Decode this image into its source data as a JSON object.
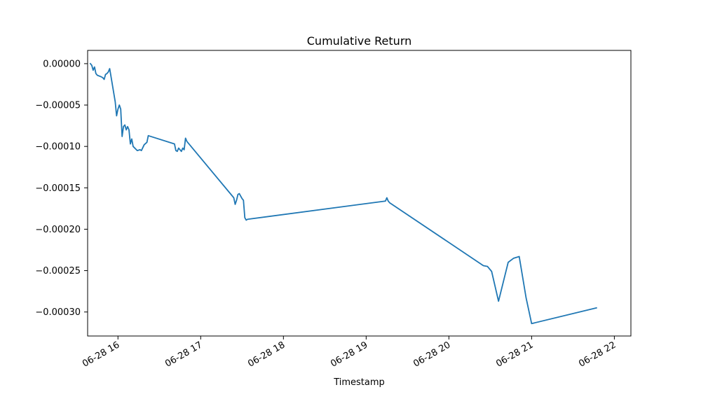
{
  "chart_data": {
    "type": "line",
    "title": "Cumulative Return",
    "xlabel": "Timestamp",
    "ylabel": "",
    "x_axis_type": "datetime",
    "xlim": [
      "2024-06-28 15:38",
      "2024-06-28 22:12"
    ],
    "ylim": [
      -0.000329,
      1.6e-05
    ],
    "x_ticks": [
      {
        "value": "2024-06-28 16:00",
        "label": "06-28 16"
      },
      {
        "value": "2024-06-28 17:00",
        "label": "06-28 17"
      },
      {
        "value": "2024-06-28 18:00",
        "label": "06-28 18"
      },
      {
        "value": "2024-06-28 19:00",
        "label": "06-28 19"
      },
      {
        "value": "2024-06-28 20:00",
        "label": "06-28 20"
      },
      {
        "value": "2024-06-28 21:00",
        "label": "06-28 21"
      },
      {
        "value": "2024-06-28 22:00",
        "label": "06-28 22"
      }
    ],
    "y_ticks": [
      {
        "value": 0.0,
        "label": "0.00000"
      },
      {
        "value": -5e-05,
        "label": "−0.00005"
      },
      {
        "value": -0.0001,
        "label": "−0.00010"
      },
      {
        "value": -0.00015,
        "label": "−0.00015"
      },
      {
        "value": -0.0002,
        "label": "−0.00020"
      },
      {
        "value": -0.00025,
        "label": "−0.00025"
      },
      {
        "value": -0.0003,
        "label": "−0.00030"
      }
    ],
    "grid": false,
    "legend": "none",
    "colors": {
      "line": "#1f77b4"
    },
    "series": [
      {
        "x": [
          "2024-06-28 15:40",
          "2024-06-28 15:41",
          "2024-06-28 15:42",
          "2024-06-28 15:43",
          "2024-06-28 15:44",
          "2024-06-28 15:45",
          "2024-06-28 15:48",
          "2024-06-28 15:49",
          "2024-06-28 15:50",
          "2024-06-28 15:51",
          "2024-06-28 15:52",
          "2024-06-28 15:53",
          "2024-06-28 15:54",
          "2024-06-28 15:58",
          "2024-06-28 15:59",
          "2024-06-28 16:00",
          "2024-06-28 16:01",
          "2024-06-28 16:02",
          "2024-06-28 16:03",
          "2024-06-28 16:04",
          "2024-06-28 16:05",
          "2024-06-28 16:06",
          "2024-06-28 16:07",
          "2024-06-28 16:08",
          "2024-06-28 16:09",
          "2024-06-28 16:10",
          "2024-06-28 16:11",
          "2024-06-28 16:14",
          "2024-06-28 16:16",
          "2024-06-28 16:17",
          "2024-06-28 16:19",
          "2024-06-28 16:21",
          "2024-06-28 16:22",
          "2024-06-28 16:41",
          "2024-06-28 16:42",
          "2024-06-28 16:43",
          "2024-06-28 16:44",
          "2024-06-28 16:46",
          "2024-06-28 16:47",
          "2024-06-28 16:48",
          "2024-06-28 16:49",
          "2024-06-28 16:50",
          "2024-06-28 17:24",
          "2024-06-28 17:25",
          "2024-06-28 17:26",
          "2024-06-28 17:27",
          "2024-06-28 17:28",
          "2024-06-28 17:29",
          "2024-06-28 17:30",
          "2024-06-28 17:31",
          "2024-06-28 17:32",
          "2024-06-28 17:33",
          "2024-06-28 17:34",
          "2024-06-28 19:14",
          "2024-06-28 19:15",
          "2024-06-28 19:16",
          "2024-06-28 19:17",
          "2024-06-28 20:25",
          "2024-06-28 20:28",
          "2024-06-28 20:31",
          "2024-06-28 20:36",
          "2024-06-28 20:43",
          "2024-06-28 20:47",
          "2024-06-28 20:51",
          "2024-06-28 20:56",
          "2024-06-28 21:00",
          "2024-06-28 21:47"
        ],
        "values": [
          0.0,
          -2e-06,
          -8e-06,
          -4e-06,
          -1.2e-05,
          -1.4e-05,
          -1.6e-05,
          -1.7e-05,
          -1.9e-05,
          -1.3e-05,
          -1.2e-05,
          -1e-05,
          -6e-06,
          -4.6e-05,
          -6.3e-05,
          -5.5e-05,
          -5e-05,
          -5.5e-05,
          -8.8e-05,
          -7.6e-05,
          -7.4e-05,
          -8e-05,
          -7.6e-05,
          -8e-05,
          -9.7e-05,
          -9.1e-05,
          -0.0001,
          -0.000105,
          -0.000104,
          -0.000105,
          -9.8e-05,
          -9.5e-05,
          -8.7e-05,
          -9.7e-05,
          -0.000105,
          -0.000106,
          -0.000102,
          -0.000106,
          -0.000102,
          -0.000104,
          -9e-05,
          -9.4e-05,
          -0.000162,
          -0.00017,
          -0.000165,
          -0.000158,
          -0.000157,
          -0.00016,
          -0.000163,
          -0.000165,
          -0.000186,
          -0.000189,
          -0.000188,
          -0.000166,
          -0.000162,
          -0.000166,
          -0.000168,
          -0.000244,
          -0.000245,
          -0.000251,
          -0.000287,
          -0.00024,
          -0.000235,
          -0.000233,
          -0.000283,
          -0.000314,
          -0.000295
        ]
      }
    ]
  }
}
